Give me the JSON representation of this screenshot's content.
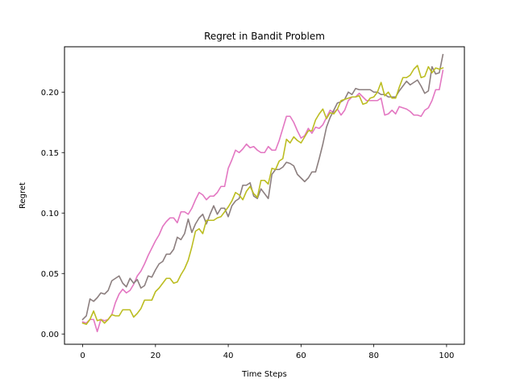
{
  "chart_data": {
    "type": "line",
    "title": "Regret in Bandit Problem",
    "xlabel": "Time Steps",
    "ylabel": "Regret",
    "xlim": [
      -5,
      104.9
    ],
    "ylim": [
      -0.0085,
      0.2375
    ],
    "x_ticks": [
      0,
      20,
      40,
      60,
      80,
      100
    ],
    "y_ticks": [
      0.0,
      0.05,
      0.1,
      0.15,
      0.2
    ],
    "x_tick_labels": [
      "0",
      "20",
      "40",
      "60",
      "80",
      "100"
    ],
    "y_tick_labels": [
      "0.00",
      "0.05",
      "0.10",
      "0.15",
      "0.20"
    ],
    "grid": false,
    "legend": "none",
    "x": [
      0,
      1,
      2,
      3,
      4,
      5,
      6,
      7,
      8,
      9,
      10,
      11,
      12,
      13,
      14,
      15,
      16,
      17,
      18,
      19,
      20,
      21,
      22,
      23,
      24,
      25,
      26,
      27,
      28,
      29,
      30,
      31,
      32,
      33,
      34,
      35,
      36,
      37,
      38,
      39,
      40,
      41,
      42,
      43,
      44,
      45,
      46,
      47,
      48,
      49,
      50,
      51,
      52,
      53,
      54,
      55,
      56,
      57,
      58,
      59,
      60,
      61,
      62,
      63,
      64,
      65,
      66,
      67,
      68,
      69,
      70,
      71,
      72,
      73,
      74,
      75,
      76,
      77,
      78,
      79,
      80,
      81,
      82,
      83,
      84,
      85,
      86,
      87,
      88,
      89,
      90,
      91,
      92,
      93,
      94,
      95,
      96,
      97,
      98,
      99
    ],
    "series": [
      {
        "color": "#e377c2",
        "values": [
          0.01,
          0.009,
          0.012,
          0.012,
          0.002,
          0.012,
          0.011,
          0.012,
          0.016,
          0.026,
          0.033,
          0.037,
          0.034,
          0.036,
          0.041,
          0.048,
          0.052,
          0.058,
          0.065,
          0.071,
          0.077,
          0.082,
          0.089,
          0.093,
          0.096,
          0.096,
          0.092,
          0.101,
          0.101,
          0.099,
          0.104,
          0.111,
          0.117,
          0.115,
          0.111,
          0.114,
          0.114,
          0.117,
          0.122,
          0.122,
          0.137,
          0.144,
          0.152,
          0.15,
          0.153,
          0.157,
          0.154,
          0.155,
          0.152,
          0.15,
          0.15,
          0.155,
          0.152,
          0.152,
          0.16,
          0.17,
          0.18,
          0.18,
          0.175,
          0.168,
          0.162,
          0.164,
          0.17,
          0.166,
          0.171,
          0.17,
          0.173,
          0.179,
          0.185,
          0.183,
          0.186,
          0.181,
          0.185,
          0.193,
          0.196,
          0.196,
          0.199,
          0.196,
          0.193,
          0.193,
          0.193,
          0.193,
          0.195,
          0.181,
          0.182,
          0.185,
          0.182,
          0.188,
          0.187,
          0.186,
          0.184,
          0.181,
          0.181,
          0.18,
          0.185,
          0.187,
          0.193,
          0.202,
          0.202,
          0.218
        ]
      },
      {
        "color": "#8c7f7f",
        "values": [
          0.012,
          0.015,
          0.029,
          0.027,
          0.03,
          0.034,
          0.033,
          0.036,
          0.044,
          0.046,
          0.048,
          0.042,
          0.039,
          0.046,
          0.042,
          0.045,
          0.038,
          0.04,
          0.048,
          0.047,
          0.053,
          0.058,
          0.06,
          0.066,
          0.066,
          0.07,
          0.08,
          0.078,
          0.083,
          0.095,
          0.084,
          0.091,
          0.096,
          0.099,
          0.091,
          0.099,
          0.106,
          0.099,
          0.104,
          0.104,
          0.097,
          0.106,
          0.11,
          0.112,
          0.123,
          0.123,
          0.125,
          0.114,
          0.112,
          0.12,
          0.116,
          0.112,
          0.132,
          0.136,
          0.136,
          0.138,
          0.142,
          0.141,
          0.139,
          0.132,
          0.129,
          0.126,
          0.129,
          0.134,
          0.134,
          0.145,
          0.157,
          0.171,
          0.179,
          0.185,
          0.191,
          0.192,
          0.194,
          0.2,
          0.198,
          0.203,
          0.202,
          0.202,
          0.202,
          0.202,
          0.2,
          0.2,
          0.198,
          0.198,
          0.196,
          0.196,
          0.196,
          0.201,
          0.205,
          0.209,
          0.206,
          0.208,
          0.21,
          0.205,
          0.199,
          0.201,
          0.221,
          0.215,
          0.216,
          0.231
        ]
      },
      {
        "color": "#bcbd22",
        "values": [
          0.009,
          0.008,
          0.012,
          0.019,
          0.011,
          0.012,
          0.009,
          0.012,
          0.016,
          0.015,
          0.015,
          0.02,
          0.02,
          0.02,
          0.014,
          0.017,
          0.021,
          0.028,
          0.028,
          0.028,
          0.035,
          0.038,
          0.042,
          0.046,
          0.046,
          0.042,
          0.043,
          0.049,
          0.054,
          0.061,
          0.072,
          0.085,
          0.087,
          0.083,
          0.094,
          0.094,
          0.094,
          0.096,
          0.097,
          0.101,
          0.105,
          0.11,
          0.117,
          0.115,
          0.111,
          0.118,
          0.122,
          0.116,
          0.113,
          0.127,
          0.127,
          0.124,
          0.137,
          0.136,
          0.143,
          0.145,
          0.161,
          0.158,
          0.163,
          0.16,
          0.158,
          0.163,
          0.168,
          0.168,
          0.177,
          0.182,
          0.186,
          0.178,
          0.183,
          0.182,
          0.186,
          0.193,
          0.194,
          0.195,
          0.196,
          0.196,
          0.197,
          0.19,
          0.191,
          0.195,
          0.196,
          0.2,
          0.208,
          0.197,
          0.2,
          0.195,
          0.195,
          0.204,
          0.212,
          0.212,
          0.214,
          0.219,
          0.222,
          0.212,
          0.213,
          0.221,
          0.216,
          0.22,
          0.219,
          0.22
        ]
      }
    ]
  }
}
